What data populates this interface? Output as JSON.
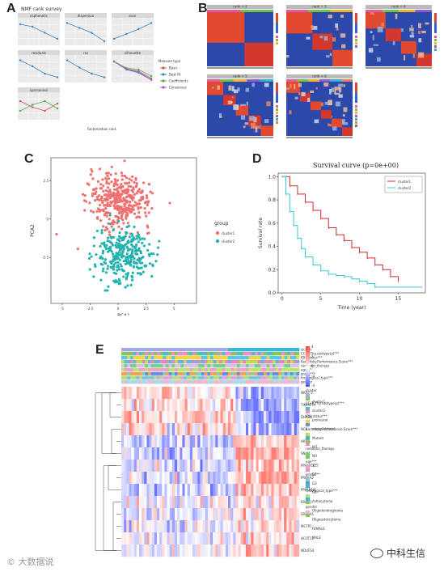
{
  "panel_labels": {
    "a": "A",
    "b": "B",
    "c": "C",
    "d": "D",
    "e": "E"
  },
  "panelA": {
    "title": "NMF rank survey",
    "xlabel": "Factorization rank",
    "facets": [
      "cophenetic",
      "dispersion",
      "evar",
      "residuals",
      "rss",
      "silhouette",
      "sparseness"
    ],
    "legend_title": "Measure type",
    "legend_items": [
      {
        "label": "Basis",
        "color": "#d9534f"
      },
      {
        "label": "Best fit",
        "color": "#3a87c8"
      },
      {
        "label": "Coefficients",
        "color": "#4caf50"
      },
      {
        "label": "Consensus",
        "color": "#a05fc7"
      }
    ]
  },
  "panelB": {
    "titles": [
      "rank = 2",
      "rank = 3",
      "rank = 4",
      "rank = 5",
      "rank = 6"
    ]
  },
  "chart_data": [
    {
      "type": "scatter",
      "title": "",
      "xlabel": "PCA1",
      "ylabel": "PCA2",
      "xticks": [
        "-5",
        "-2.5",
        "0",
        "2.5",
        "5"
      ],
      "yticks": [
        "2.5",
        "0",
        "-2.5"
      ],
      "xlim": [
        -6,
        7
      ],
      "ylim": [
        -5.5,
        4
      ],
      "legend_title": "group",
      "legend_position": "right",
      "series": [
        {
          "name": "cluster1",
          "color": "#f07070"
        },
        {
          "name": "cluster2",
          "color": "#22b2b0"
        }
      ]
    },
    {
      "type": "line",
      "title": "Survival curve (p=0e+00)",
      "xlabel": "Time (year)",
      "ylabel": "Survival rate",
      "xticks": [
        "0",
        "5",
        "10",
        "15"
      ],
      "yticks": [
        "0.0",
        "0.2",
        "0.4",
        "0.6",
        "0.8",
        "1.0"
      ],
      "xlim": [
        -0.5,
        18.5
      ],
      "ylim": [
        0,
        1.03
      ],
      "legend_position": "top-right",
      "series": [
        {
          "name": "cluster1",
          "color": "#d42a2a",
          "x": [
            0,
            1,
            2,
            3,
            4,
            5,
            6,
            7,
            8,
            9,
            10,
            11,
            12,
            13,
            14,
            15
          ],
          "y": [
            1.0,
            0.92,
            0.85,
            0.78,
            0.71,
            0.64,
            0.56,
            0.5,
            0.45,
            0.39,
            0.35,
            0.3,
            0.24,
            0.2,
            0.14,
            0.1
          ]
        },
        {
          "name": "cluster2",
          "color": "#37c9d6",
          "x": [
            0,
            0.5,
            1,
            1.5,
            2,
            2.5,
            3,
            4,
            5,
            6,
            7,
            8,
            9,
            10,
            11,
            12,
            18
          ],
          "y": [
            1.0,
            0.85,
            0.7,
            0.58,
            0.47,
            0.38,
            0.31,
            0.24,
            0.19,
            0.16,
            0.15,
            0.14,
            0.12,
            0.1,
            0.08,
            0.05,
            0.05
          ]
        }
      ]
    }
  ],
  "panelE": {
    "annotation_rows": [
      "cluster",
      "CCLE.Thy.subtype(p)***",
      "IDH.status***",
      "Karnofsky.Performance.Score***",
      "radiation_therapy",
      "age***",
      "grade***",
      "histological_type***",
      "gender"
    ],
    "genes": [
      "NKX2-2",
      "TIMM17A",
      "DHX36",
      "NCL",
      "HIF1A",
      "SNAI1",
      "PPP4R1L",
      "PRKAA2",
      "PPP4R1B",
      "RAD51",
      "SRD5A1",
      "MCTP1",
      "ACOT11",
      "NDUFS4"
    ],
    "legend_groups": [
      "cluster",
      "CCLE.Thy.subtype(p)***",
      "IDH.status***",
      "Karnofsky.Performance.Score***",
      "radiation_therapy",
      "age***",
      "grade***",
      "histological_type***",
      "gender"
    ],
    "legend_items": [
      "cluster1",
      "cluster2",
      "proneural",
      "mesenchymal",
      "Mutant",
      "WT",
      "NO",
      "YES",
      "G2",
      "G3",
      "G4",
      "Astrocytoma",
      "Oligodendroglioma",
      "Oligoastrocytoma",
      "FEMALE",
      "MALE"
    ],
    "scale_ticks": [
      "4",
      "2",
      "0",
      "-2",
      "-4"
    ]
  },
  "watermarks": {
    "left": "© 大数据说",
    "right": "中科生信"
  }
}
